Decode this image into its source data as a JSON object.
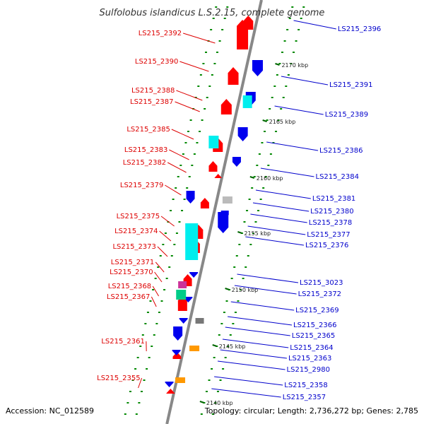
{
  "title": "Sulfolobus islandicus L.S.2.15, complete genome",
  "footer": {
    "accession": "Accession: NC_012589",
    "topology": "Topology: circular; Length: 2,736,272 bp; Genes: 2,785"
  },
  "colors": {
    "left_label": "#dd0000",
    "right_label": "#0000cc",
    "forward_gene": "#ff0000",
    "reverse_gene": "#0000ee",
    "rna_gene": "#00eeee",
    "tick": "#008800",
    "backbone": "#888888"
  },
  "scale": [
    {
      "label": "2170 kbp"
    },
    {
      "label": "2165 kbp"
    },
    {
      "label": "2160 kbp"
    },
    {
      "label": "2155 kbp"
    },
    {
      "label": "2150 kbp"
    },
    {
      "label": "2145 kbp"
    },
    {
      "label": "2140 kbp"
    }
  ],
  "left_labels": [
    "LS215_2392",
    "LS215_2390",
    "LS215_2388",
    "LS215_2387",
    "LS215_2385",
    "LS215_2383",
    "LS215_2382",
    "LS215_2379",
    "LS215_2375",
    "LS215_2374",
    "LS215_2373",
    "LS215_2371",
    "LS215_2370",
    "LS215_2368",
    "LS215_2367",
    "LS215_2361",
    "LS215_2355"
  ],
  "right_labels": [
    "LS215_2396",
    "LS215_2391",
    "LS215_2389",
    "LS215_2386",
    "LS215_2384",
    "LS215_2381",
    "LS215_2380",
    "LS215_2378",
    "LS215_2377",
    "LS215_2376",
    "LS215_3023",
    "LS215_2372",
    "LS215_2369",
    "LS215_2366",
    "LS215_2365",
    "LS215_2364",
    "LS215_2363",
    "LS215_2980",
    "LS215_2358",
    "LS215_2357"
  ]
}
